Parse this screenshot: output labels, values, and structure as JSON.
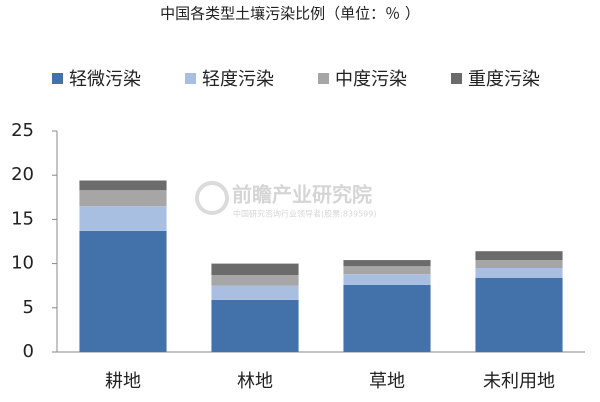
{
  "chart_data": {
    "type": "stacked_bar",
    "title": "中国各类型土壤污染比例（单位：％ ）",
    "categories": [
      "耕地",
      "林地",
      "草地",
      "未利用地"
    ],
    "series": [
      {
        "name": "轻微污染",
        "color": "#4372aa",
        "values": [
          13.7,
          5.9,
          7.6,
          8.4
        ]
      },
      {
        "name": "轻度污染",
        "color": "#a9bfe2",
        "values": [
          2.8,
          1.6,
          1.2,
          1.1
        ]
      },
      {
        "name": "中度污染",
        "color": "#a6a6a6",
        "values": [
          1.8,
          1.2,
          0.9,
          0.9
        ]
      },
      {
        "name": "重度污染",
        "color": "#6b6b6b",
        "values": [
          1.1,
          1.3,
          0.7,
          1.0
        ]
      }
    ],
    "ylim": [
      0,
      25
    ],
    "yticks": [
      0,
      5,
      10,
      15,
      20,
      25
    ],
    "grid": false,
    "legend": "top"
  },
  "watermark": {
    "brand": "前瞻产业研究院",
    "tagline": "中国研究咨询行业领导者(股票:839599)"
  }
}
